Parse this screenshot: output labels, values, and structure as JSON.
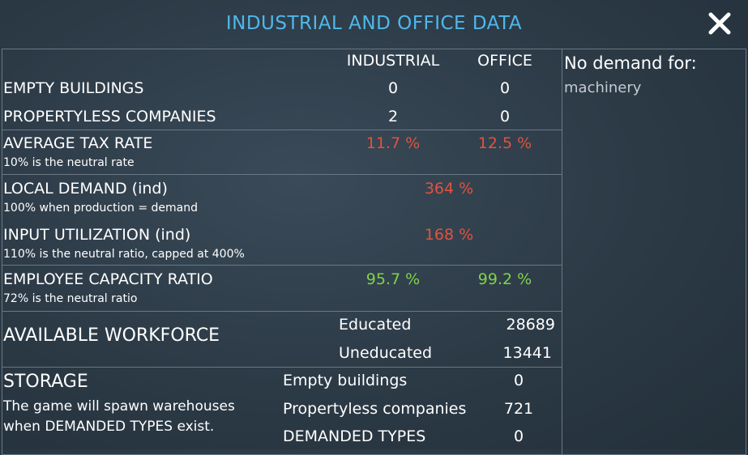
{
  "window": {
    "title": "INDUSTRIAL AND OFFICE DATA"
  },
  "columns": {
    "industrial": "INDUSTRIAL",
    "office": "OFFICE"
  },
  "rows": {
    "empty_buildings": {
      "label": "EMPTY BUILDINGS",
      "industrial": "0",
      "office": "0"
    },
    "propertyless_companies": {
      "label": "PROPERTYLESS COMPANIES",
      "industrial": "2",
      "office": "0"
    },
    "average_tax_rate": {
      "label": "AVERAGE TAX RATE",
      "note": "10% is the neutral rate",
      "industrial": "11.7 %",
      "office": "12.5 %"
    },
    "local_demand": {
      "label": "LOCAL DEMAND (ind)",
      "note": "100% when production = demand",
      "value": "364 %"
    },
    "input_utilization": {
      "label": "INPUT UTILIZATION (ind)",
      "note": "110% is the neutral ratio, capped at 400%",
      "value": "168 %"
    },
    "employee_capacity_ratio": {
      "label": "EMPLOYEE CAPACITY RATIO",
      "note": "72% is the neutral ratio",
      "industrial": "95.7 %",
      "office": "99.2 %"
    }
  },
  "workforce": {
    "label": "AVAILABLE WORKFORCE",
    "educated_label": "Educated",
    "educated_value": "28689",
    "uneducated_label": "Uneducated",
    "uneducated_value": "13441"
  },
  "storage": {
    "label": "STORAGE",
    "note_line1": "The game will spawn warehouses",
    "note_line2": "when DEMANDED TYPES exist.",
    "empty_buildings_label": "Empty buildings",
    "empty_buildings_value": "0",
    "propertyless_label": "Propertyless companies",
    "propertyless_value": "721",
    "demanded_types_label": "DEMANDED TYPES",
    "demanded_types_value": "0"
  },
  "sidebar": {
    "title": "No demand for:",
    "items": [
      "machinery"
    ]
  },
  "colors": {
    "title": "#4fb8ea",
    "negative": "#e0533f",
    "positive": "#7fd34a"
  },
  "icons": {
    "close": "close-icon"
  }
}
